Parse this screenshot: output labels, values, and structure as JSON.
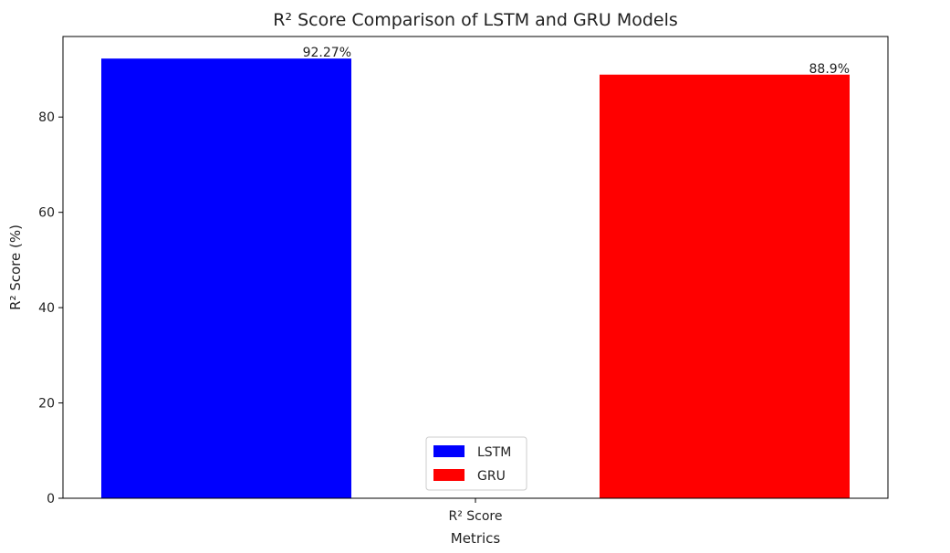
{
  "chart_data": {
    "type": "bar",
    "title": "R² Score Comparison of LSTM and GRU Models",
    "xlabel": "Metrics",
    "ylabel": "R² Score (%)",
    "categories": [
      "R² Score"
    ],
    "series": [
      {
        "name": "LSTM",
        "values": [
          92.27
        ],
        "color": "#0000ff",
        "label": "92.27%"
      },
      {
        "name": "GRU",
        "values": [
          88.9
        ],
        "color": "#ff0000",
        "label": "88.9%"
      }
    ],
    "ylim": [
      0,
      96.9
    ],
    "yticks": [
      0,
      20,
      40,
      60,
      80
    ],
    "grid": false,
    "legend_position": "bottom-center"
  }
}
